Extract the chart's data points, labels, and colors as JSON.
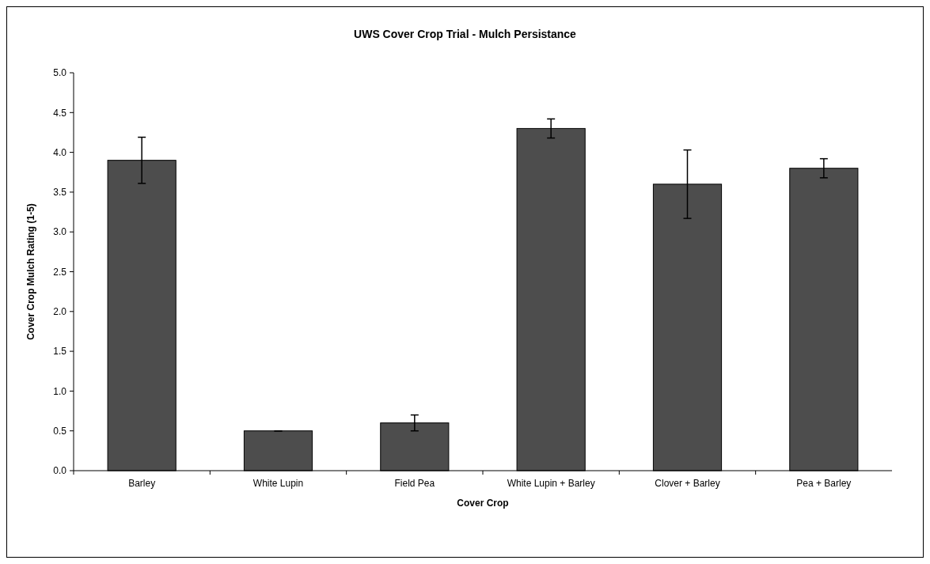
{
  "chart_data": {
    "type": "bar",
    "title": "UWS Cover Crop Trial - Mulch Persistance",
    "xlabel": "Cover Crop",
    "ylabel": "Cover Crop Mulch Rating (1-5)",
    "categories": [
      "Barley",
      "White Lupin",
      "Field Pea",
      "White Lupin + Barley",
      "Clover + Barley",
      "Pea + Barley"
    ],
    "values": [
      3.9,
      0.5,
      0.6,
      4.3,
      3.6,
      3.8
    ],
    "errors": [
      0.29,
      0,
      0.1,
      0.12,
      0.43,
      0.12
    ],
    "color": "#4d4d4d",
    "ylim": [
      0,
      5
    ],
    "yticks": [
      {
        "value": 0,
        "label": "0.0"
      },
      {
        "value": 0.5,
        "label": "0.5"
      },
      {
        "value": 1,
        "label": "1.0"
      },
      {
        "value": 1.5,
        "label": "1.5"
      },
      {
        "value": 2,
        "label": "2.0"
      },
      {
        "value": 2.5,
        "label": "2.5"
      },
      {
        "value": 3,
        "label": "3.0"
      },
      {
        "value": 3.5,
        "label": "3.5"
      },
      {
        "value": 4,
        "label": "4.0"
      },
      {
        "value": 4.5,
        "label": "4.5"
      },
      {
        "value": 5,
        "label": "5.0"
      }
    ],
    "grid": false
  }
}
